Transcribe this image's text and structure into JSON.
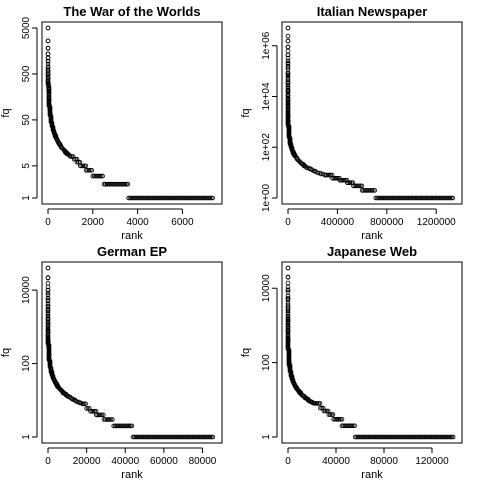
{
  "chart_data": [
    {
      "type": "scatter",
      "title": "The War of the Worlds",
      "xlabel": "rank",
      "ylabel": "fq",
      "y_scale": "log",
      "xlim": [
        0,
        7500
      ],
      "ylim": [
        1,
        5000
      ],
      "x_ticks": [
        0,
        2000,
        4000,
        6000
      ],
      "x_tick_labels": [
        "0",
        "2000",
        "4000",
        "6000"
      ],
      "y_ticks": [
        1,
        5,
        50,
        500,
        5000
      ],
      "y_tick_labels": [
        "1",
        "5",
        "50",
        "500",
        "5000"
      ],
      "n_ranks": 7400,
      "max_fq": 5000,
      "head_ranks": [
        1,
        2,
        3,
        4,
        5,
        6,
        8,
        10,
        12,
        15,
        20,
        25,
        30,
        40,
        50,
        65,
        80,
        100,
        130,
        160,
        200,
        250
      ],
      "plateaus": [
        {
          "fq": 8,
          "x": [
            1000,
            1170
          ]
        },
        {
          "fq": 7,
          "x": [
            1170,
            1300
          ]
        },
        {
          "fq": 6,
          "x": [
            1300,
            1440
          ]
        },
        {
          "fq": 5,
          "x": [
            1440,
            1700
          ]
        },
        {
          "fq": 4,
          "x": [
            1700,
            2000
          ]
        },
        {
          "fq": 3,
          "x": [
            2000,
            2500
          ]
        },
        {
          "fq": 2,
          "x": [
            2500,
            3600
          ]
        },
        {
          "fq": 1,
          "x": [
            3600,
            7400
          ]
        }
      ]
    },
    {
      "type": "scatter",
      "title": "Italian Newspaper",
      "xlabel": "rank",
      "ylabel": "fq",
      "y_scale": "log",
      "xlim": [
        0,
        1360000
      ],
      "ylim": [
        1,
        5000000
      ],
      "x_ticks": [
        0,
        400000,
        800000,
        1200000
      ],
      "x_tick_labels": [
        "0",
        "400000",
        "800000",
        "1200000"
      ],
      "y_ticks": [
        1,
        100,
        10000,
        1000000
      ],
      "y_tick_labels": [
        "1e+00",
        "1e+02",
        "1e+04",
        "1e+06"
      ],
      "n_ranks": 1340000,
      "max_fq": 5000000,
      "head_ranks": [
        1,
        2,
        3,
        5,
        10,
        20,
        50,
        100,
        200,
        500,
        1000,
        2000,
        3000,
        5000,
        8000,
        12000,
        16000,
        20000,
        25000,
        30000,
        40000,
        50000
      ],
      "plateaus": [
        {
          "fq": 8,
          "x": [
            300000,
            360000
          ]
        },
        {
          "fq": 6,
          "x": [
            360000,
            420000
          ]
        },
        {
          "fq": 5,
          "x": [
            420000,
            480000
          ]
        },
        {
          "fq": 4,
          "x": [
            480000,
            530000
          ]
        },
        {
          "fq": 3,
          "x": [
            530000,
            600000
          ]
        },
        {
          "fq": 2,
          "x": [
            600000,
            710000
          ]
        },
        {
          "fq": 1,
          "x": [
            710000,
            1340000
          ]
        }
      ]
    },
    {
      "type": "scatter",
      "title": "German EP",
      "xlabel": "rank",
      "ylabel": "fq",
      "y_scale": "log",
      "xlim": [
        0,
        87000
      ],
      "ylim": [
        1,
        40000
      ],
      "x_ticks": [
        0,
        20000,
        40000,
        60000,
        80000
      ],
      "x_tick_labels": [
        "0",
        "20000",
        "40000",
        "60000",
        "80000"
      ],
      "y_ticks": [
        1,
        100,
        10000
      ],
      "y_tick_labels": [
        "1",
        "100",
        "10000"
      ],
      "n_ranks": 86000,
      "max_fq": 40000,
      "head_ranks": [
        1,
        2,
        3,
        5,
        10,
        20,
        50,
        100,
        200,
        300,
        500,
        800,
        1000,
        1500,
        2000,
        2500,
        3000,
        4000,
        5000,
        6000,
        7000
      ],
      "plateaus": [
        {
          "fq": 8,
          "x": [
            18000,
            20000
          ]
        },
        {
          "fq": 6,
          "x": [
            20000,
            22000
          ]
        },
        {
          "fq": 5,
          "x": [
            22000,
            25000
          ]
        },
        {
          "fq": 4,
          "x": [
            25000,
            29000
          ]
        },
        {
          "fq": 3,
          "x": [
            29000,
            34000
          ]
        },
        {
          "fq": 2,
          "x": [
            34000,
            44000
          ]
        },
        {
          "fq": 1,
          "x": [
            44000,
            86000
          ]
        }
      ]
    },
    {
      "type": "scatter",
      "title": "Japanese Web",
      "xlabel": "rank",
      "ylabel": "fq",
      "y_scale": "log",
      "xlim": [
        0,
        140000
      ],
      "ylim": [
        1,
        35000
      ],
      "x_ticks": [
        0,
        40000,
        80000,
        120000
      ],
      "x_tick_labels": [
        "0",
        "40000",
        "80000",
        "120000"
      ],
      "y_ticks": [
        1,
        100,
        10000
      ],
      "y_tick_labels": [
        "1",
        "100",
        "10000"
      ],
      "n_ranks": 138000,
      "max_fq": 35000,
      "head_ranks": [
        1,
        2,
        3,
        5,
        10,
        20,
        50,
        100,
        200,
        400,
        700,
        1000,
        1500,
        2000,
        3000,
        4000,
        5000,
        6000,
        8000
      ],
      "plateaus": [
        {
          "fq": 8,
          "x": [
            22000,
            27000
          ]
        },
        {
          "fq": 6,
          "x": [
            27000,
            30000
          ]
        },
        {
          "fq": 5,
          "x": [
            30000,
            34000
          ]
        },
        {
          "fq": 4,
          "x": [
            34000,
            38000
          ]
        },
        {
          "fq": 3,
          "x": [
            38000,
            45000
          ]
        },
        {
          "fq": 2,
          "x": [
            45000,
            56000
          ]
        },
        {
          "fq": 1,
          "x": [
            56000,
            138000
          ]
        }
      ]
    }
  ]
}
